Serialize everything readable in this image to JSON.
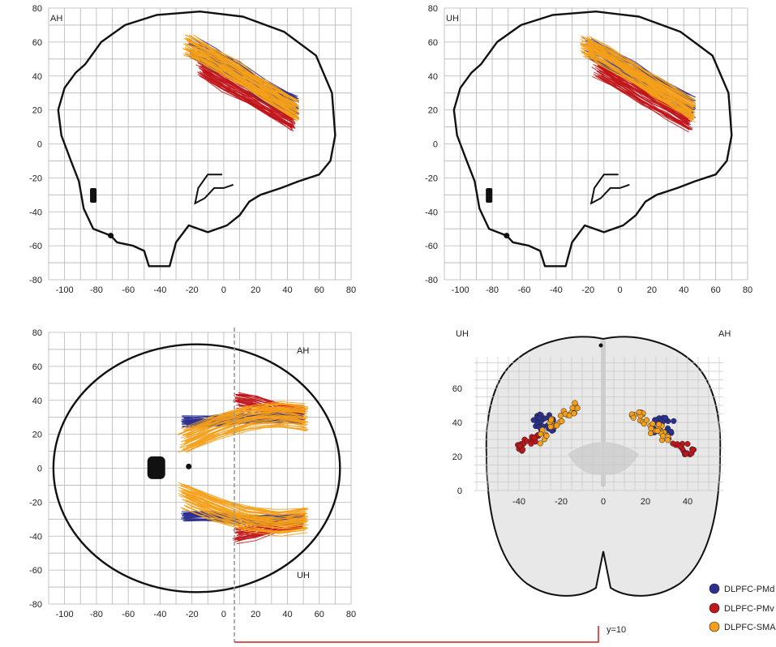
{
  "panels": {
    "sagittal_ah": {
      "label": "AH",
      "x_ticks": [
        "-100",
        "-80",
        "-60",
        "-40",
        "-20",
        "0",
        "20",
        "40",
        "60",
        "80"
      ],
      "y_ticks": [
        "80",
        "60",
        "40",
        "20",
        "0",
        "-20",
        "-40",
        "-60",
        "-80"
      ]
    },
    "sagittal_uh": {
      "label": "UH",
      "x_ticks": [
        "-100",
        "-80",
        "-60",
        "-40",
        "-20",
        "0",
        "20",
        "40",
        "60",
        "80"
      ],
      "y_ticks": [
        "80",
        "60",
        "40",
        "20",
        "0",
        "-20",
        "-40",
        "-60",
        "-80"
      ]
    },
    "axial": {
      "label_top": "AH",
      "label_bottom": "UH",
      "x_ticks": [
        "-100",
        "-80",
        "-60",
        "-40",
        "-20",
        "0",
        "20",
        "40",
        "60",
        "80"
      ],
      "y_ticks": [
        "80",
        "60",
        "40",
        "20",
        "0",
        "-20",
        "-40",
        "-60",
        "-80"
      ]
    },
    "coronal": {
      "label_left": "UH",
      "label_right": "AH",
      "x_ticks": [
        "-40",
        "-20",
        "0",
        "20",
        "40"
      ],
      "y_ticks": [
        "60",
        "40",
        "20",
        "0"
      ]
    }
  },
  "legend": [
    {
      "label": "DLPFC-PMd",
      "color": "#2b2f8f"
    },
    {
      "label": "DLPFC-PMv",
      "color": "#c0161b"
    },
    {
      "label": "DLPFC-SMA",
      "color": "#f5a01a"
    }
  ],
  "slice_marker": {
    "label": "y=10"
  },
  "colors": {
    "pmd": "#2b2f8f",
    "pmv": "#c0161b",
    "sma": "#f5a01a",
    "grid": "#b5b5b5",
    "outline": "#111111"
  }
}
